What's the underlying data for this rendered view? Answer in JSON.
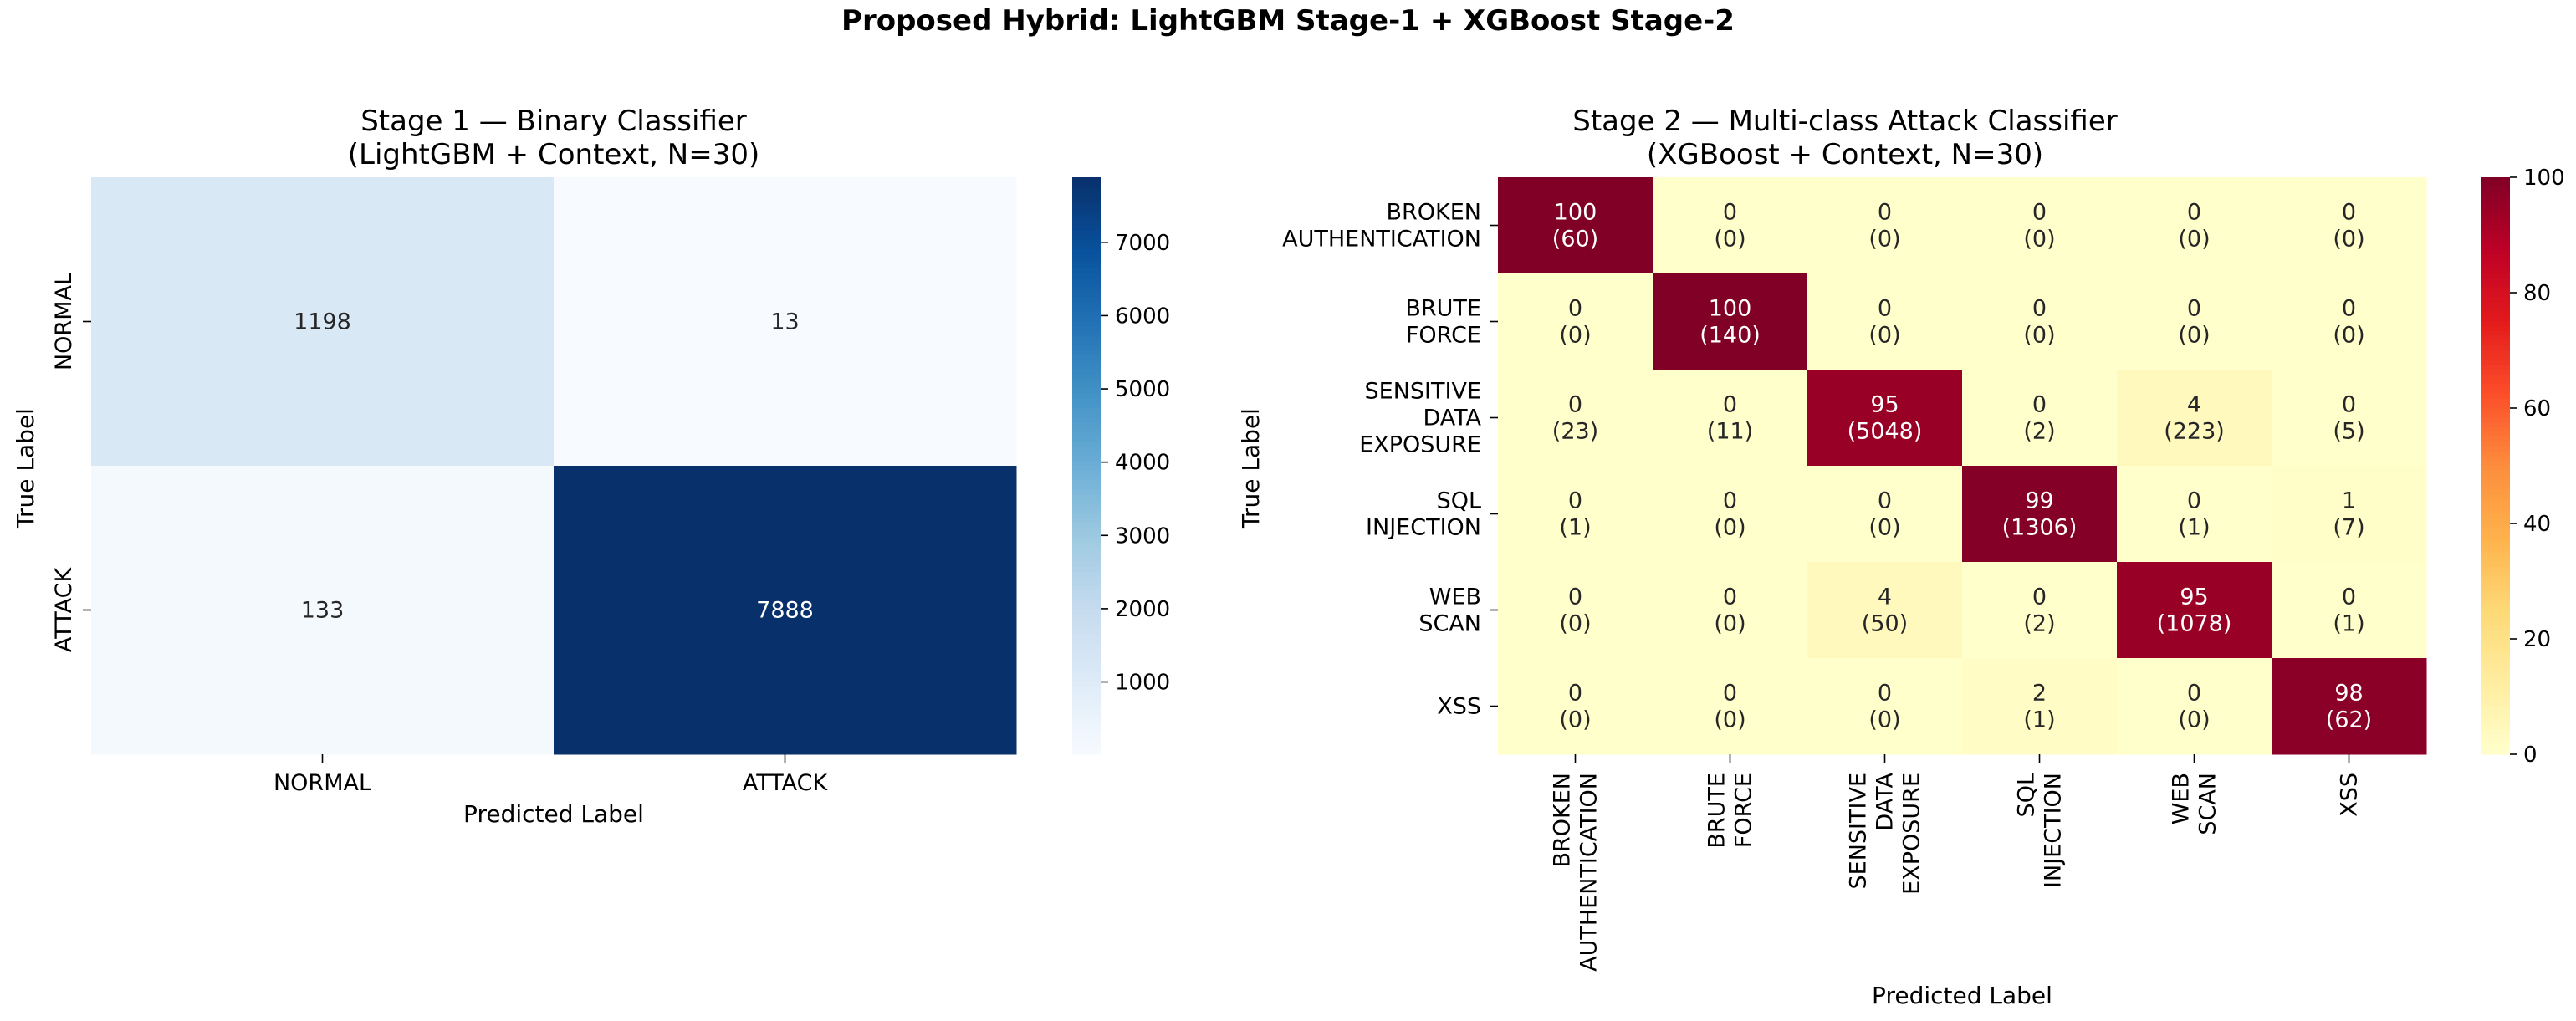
{
  "suptitle": "Proposed Hybrid: LightGBM Stage-1 + XGBoost Stage-2",
  "chart_data": [
    {
      "type": "heatmap",
      "title": "Stage 1 — Binary Classifier\n(LightGBM + Context, N=30)",
      "xlabel": "Predicted Label",
      "ylabel": "True Label",
      "row_labels": [
        "NORMAL",
        "ATTACK"
      ],
      "col_labels": [
        "NORMAL",
        "ATTACK"
      ],
      "values": [
        [
          1198,
          13
        ],
        [
          133,
          7888
        ]
      ],
      "colormap": "Blues",
      "colormap_stops": [
        "#f7fbff",
        "#deebf7",
        "#c6dbef",
        "#9ecae1",
        "#6baed6",
        "#4292c6",
        "#2171b5",
        "#08519c",
        "#08306b"
      ],
      "vmin": 13,
      "vmax": 7888,
      "colorbar_ticks": [
        1000,
        2000,
        3000,
        4000,
        5000,
        6000,
        7000
      ]
    },
    {
      "type": "heatmap",
      "title": "Stage 2 — Multi-class Attack Classifier\n(XGBoost + Context, N=30)",
      "xlabel": "Predicted Label",
      "ylabel": "True Label",
      "row_labels": [
        "BROKEN\nAUTHENTICATION",
        "BRUTE\nFORCE",
        "SENSITIVE\nDATA\nEXPOSURE",
        "SQL\nINJECTION",
        "WEB\nSCAN",
        "XSS"
      ],
      "col_labels": [
        "BROKEN\nAUTHENTICATION",
        "BRUTE\nFORCE",
        "SENSITIVE\nDATA\nEXPOSURE",
        "SQL\nINJECTION",
        "WEB\nSCAN",
        "XSS"
      ],
      "percent_values": [
        [
          100,
          0,
          0,
          0,
          0,
          0
        ],
        [
          0,
          100,
          0,
          0,
          0,
          0
        ],
        [
          0,
          0,
          95,
          0,
          4,
          0
        ],
        [
          0,
          0,
          0,
          99,
          0,
          1
        ],
        [
          0,
          0,
          4,
          0,
          95,
          0
        ],
        [
          0,
          0,
          0,
          2,
          0,
          98
        ]
      ],
      "count_values": [
        [
          60,
          0,
          0,
          0,
          0,
          0
        ],
        [
          0,
          140,
          0,
          0,
          0,
          0
        ],
        [
          23,
          11,
          5048,
          2,
          223,
          5
        ],
        [
          1,
          0,
          0,
          1306,
          1,
          7
        ],
        [
          0,
          0,
          50,
          2,
          1078,
          1
        ],
        [
          0,
          0,
          0,
          1,
          0,
          62
        ]
      ],
      "colormap": "YlOrRd",
      "colormap_stops": [
        "#ffffcc",
        "#ffeda0",
        "#fed976",
        "#feb24c",
        "#fd8d3c",
        "#fc4e2a",
        "#e31a1c",
        "#bd0026",
        "#800026"
      ],
      "vmin": 0,
      "vmax": 100,
      "colorbar_ticks": [
        0,
        20,
        40,
        60,
        80,
        100
      ]
    }
  ]
}
